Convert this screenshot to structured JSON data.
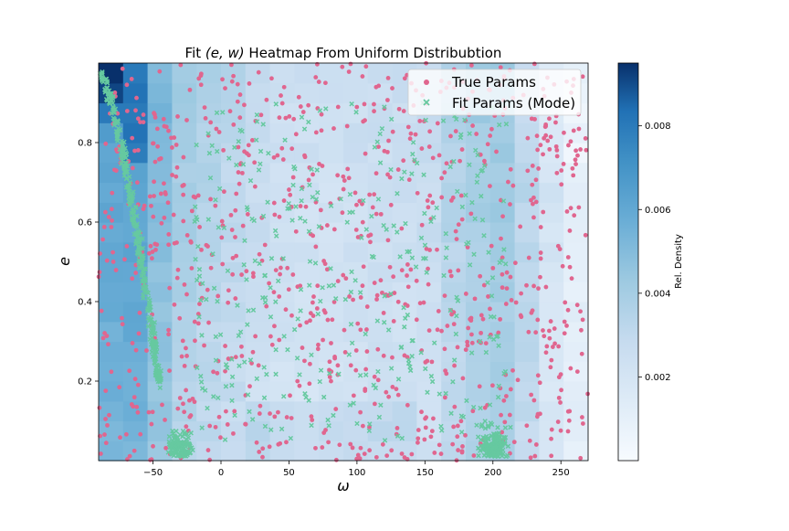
{
  "chart_data": {
    "type": "heatmap",
    "title": "Fit (e, w) Heatmap From Uniform Distribubtion",
    "title_parts": {
      "prefix": "Fit ",
      "math": "(e, w)",
      "suffix": " Heatmap From Uniform Distribubtion"
    },
    "xlabel": "ω",
    "ylabel": "e",
    "xlim": [
      -90,
      270
    ],
    "ylim": [
      0,
      1
    ],
    "x_ticks": [
      -50,
      0,
      50,
      100,
      150,
      200,
      250
    ],
    "x_tick_labels": [
      "−50",
      "0",
      "50",
      "100",
      "150",
      "200",
      "250"
    ],
    "y_ticks": [
      0.2,
      0.4,
      0.6,
      0.8
    ],
    "y_tick_labels": [
      "0.2",
      "0.4",
      "0.6",
      "0.8"
    ],
    "grid": false,
    "legend_position": "top-right",
    "colors": {
      "true_params": "#e0668f",
      "fit_params": "#66c9a0",
      "colormap_low": "#f7fbff",
      "colormap_high": "#08306b"
    },
    "heatmap": {
      "x_bins": [
        -90,
        -72,
        -54,
        -36,
        -18,
        0,
        18,
        36,
        54,
        72,
        90,
        108,
        126,
        144,
        162,
        180,
        198,
        216,
        234,
        252,
        270
      ],
      "y_bins": [
        0.0,
        0.05,
        0.1,
        0.15,
        0.2,
        0.25,
        0.3,
        0.35,
        0.4,
        0.45,
        0.5,
        0.55,
        0.6,
        0.65,
        0.7,
        0.75,
        0.8,
        0.85,
        0.9,
        0.95,
        1.0
      ],
      "column_base": [
        0.0058,
        0.006,
        0.0048,
        0.0038,
        0.0033,
        0.003,
        0.0026,
        0.0023,
        0.0022,
        0.0022,
        0.0023,
        0.0024,
        0.0024,
        0.0026,
        0.0033,
        0.0038,
        0.004,
        0.0032,
        0.002,
        0.0012
      ],
      "colorbar_label": "Rel. Density",
      "colorbar_range": [
        0,
        0.0095
      ],
      "colorbar_ticks": [
        0.002,
        0.004,
        0.006,
        0.008
      ],
      "colorbar_tick_labels": [
        "0.002",
        "0.004",
        "0.006",
        "0.008"
      ]
    },
    "series": [
      {
        "name": "True Params",
        "marker": "circle",
        "color": "#e0668f",
        "count": 950,
        "distribution": "uniform",
        "x_range": [
          -90,
          270
        ],
        "y_range": [
          0,
          1
        ]
      },
      {
        "name": "Fit Params (Mode)",
        "marker": "x",
        "color": "#66c9a0",
        "count": 950,
        "distribution": "clustered near the boundary arc from (-90, 0.98) down to (-45, 0.2), and near e=0 at ω≈-30 and ω≈200"
      }
    ]
  }
}
